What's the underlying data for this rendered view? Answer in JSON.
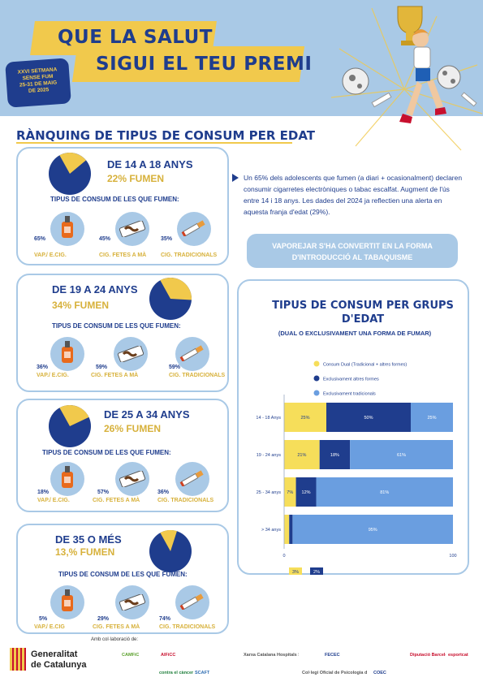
{
  "header": {
    "headline_line1": "Que la salut",
    "headline_line2": "sigui el teu premi",
    "badge_line1": "XXVI SETMANA",
    "badge_line2": "SENSE FUM",
    "badge_line3": "25-31 DE MAIG",
    "badge_line4": "DE 2025"
  },
  "section_title": "Rànquing de tipus de consum per  edat",
  "common_subtitle": "TIPUS DE CONSUM DE LES QUE FUMEN:",
  "colors": {
    "navy": "#1f3d8d",
    "gold": "#f1c94c",
    "light_blue": "#a9c9e6",
    "blue": "#6a9ee0"
  },
  "age_cards": [
    {
      "age": "DE 14 A 18 ANYS",
      "smokers": "22% FUMEN",
      "share": 0.22,
      "items": [
        {
          "value": "65%",
          "label": "VAP./ E.CIG."
        },
        {
          "value": "45%",
          "label": "CIG. FETES A MÀ"
        },
        {
          "value": "35%",
          "label": "CIG. TRADICIONALS"
        }
      ]
    },
    {
      "age": "DE 19 A 24 ANYS",
      "smokers": "34% FUMEN",
      "share": 0.34,
      "items": [
        {
          "value": "36%",
          "label": "VAP./ E.CIG."
        },
        {
          "value": "59%",
          "label": "CIG. FETES A MÀ"
        },
        {
          "value": "59%",
          "label": "CIG. TRADICIONALS"
        }
      ]
    },
    {
      "age": "DE 25 A 34 ANYS",
      "smokers": "26% FUMEN",
      "share": 0.26,
      "items": [
        {
          "value": "18%",
          "label": "VAP./ E.CIG."
        },
        {
          "value": "57%",
          "label": "CIG. FETES A MÀ"
        },
        {
          "value": "36%",
          "label": "CIG. TRADICIONALS"
        }
      ]
    },
    {
      "age": "DE 35 O MÉS",
      "smokers": "13,% FUMEN",
      "share": 0.13,
      "items": [
        {
          "value": "5%",
          "label": "VAP./ E.CIG"
        },
        {
          "value": "29%",
          "label": "CIG. FETES A MÀ"
        },
        {
          "value": "74%",
          "label": "CIG. TRADICIONALS"
        }
      ]
    }
  ],
  "info_text": "Un 65% dels adolescents que fumen (a diari + ocasionalment) declaren consumir cigarretes electròniques o tabac escalfat. Augment de l'ús entre 14 i 18 anys. Les dades del 2024 ja reflectien una alerta en aquesta franja d'edat (29%).",
  "highlight_text": "Vaporejar s'ha convertit en la forma d'introducció al tabaquisme",
  "chart_data": {
    "type": "bar",
    "orientation": "horizontal",
    "stacked": true,
    "title": "Tipus de consum per grups d'edat",
    "subtitle": "(DUAL O EXCLUSIVAMENT UNA FORMA DE FUMAR)",
    "categories": [
      "14 - 18 Anys",
      "19 - 24 anys",
      "25 - 34 anys",
      "> 34 anys"
    ],
    "series": [
      {
        "name": "Consum Dual (Tradicional + altres formes)",
        "color": "#f6de5a",
        "values": [
          25,
          21,
          7,
          3
        ],
        "labels": [
          "25%",
          "21%",
          "7%",
          "3%"
        ]
      },
      {
        "name": "Exclusivament altres formes",
        "color": "#1f3d8d",
        "values": [
          50,
          18,
          12,
          2
        ],
        "labels": [
          "50%",
          "18%",
          "12%",
          "2%"
        ]
      },
      {
        "name": "Exclusivament tradicionals",
        "color": "#6a9ee0",
        "values": [
          25,
          61,
          81,
          95
        ],
        "labels": [
          "25%",
          "61%",
          "81%",
          "95%"
        ]
      }
    ],
    "xlim": [
      0,
      100
    ],
    "x_ticks": [
      "0",
      "100"
    ],
    "legend_position": "top"
  },
  "footer": {
    "collab_label": "Amb col·laboració de:",
    "gov_line1": "Generalitat",
    "gov_line2": "de Catalunya",
    "partners": [
      "CAMFiC",
      "AIFiCC",
      "Xarxa Catalana Hospitals Sense Fum",
      "FECEC",
      "Diputació Barcelona",
      "esportcat",
      "contra el càncer",
      "SCAFT",
      "Col·legi Oficial de Psicologia de Catalunya",
      "COEC"
    ]
  }
}
